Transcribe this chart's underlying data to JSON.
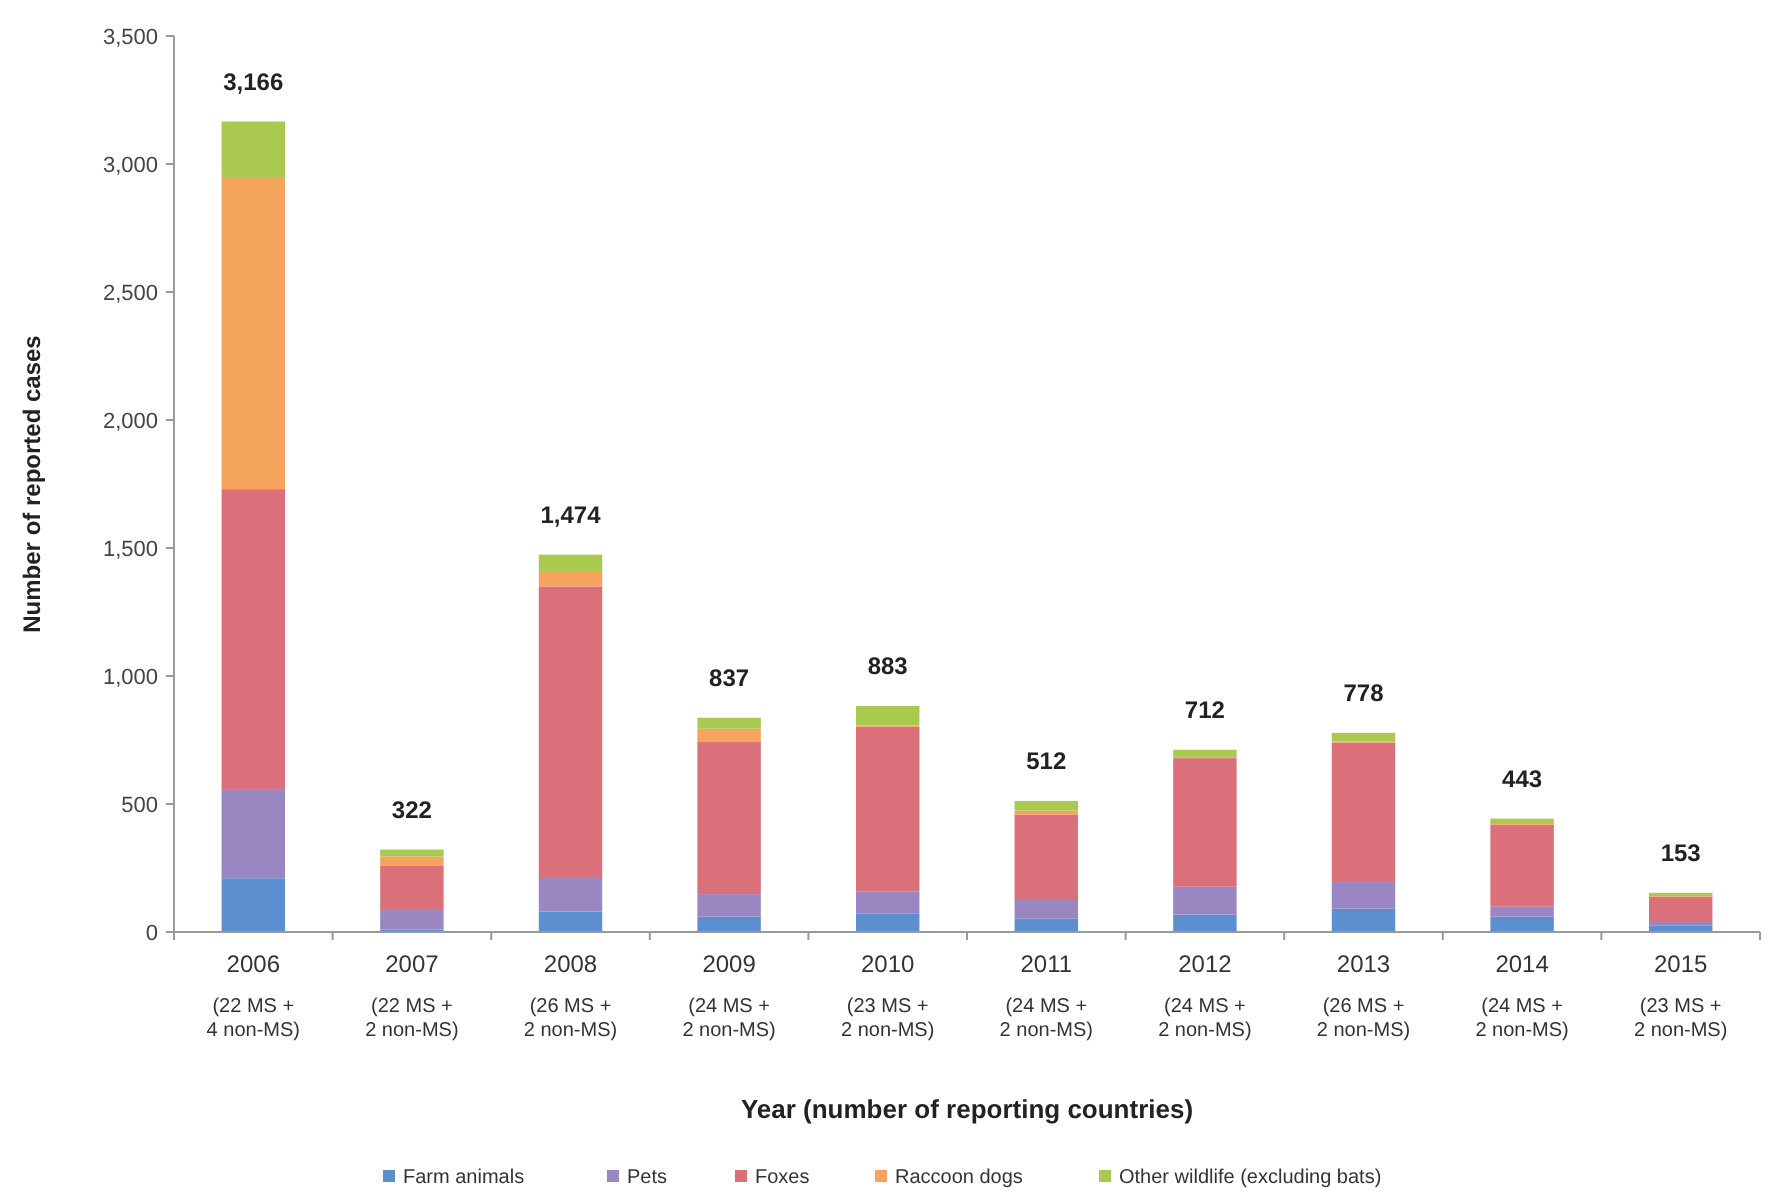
{
  "chart_data": {
    "type": "bar",
    "stacked": true,
    "xlabel": "Year (number of reporting countries)",
    "ylabel": "Number of reported cases",
    "categories": [
      "2006\n(22 MS +\n4 non-MS)",
      "2007\n(22 MS +\n2 non-MS)",
      "2008\n(26 MS +\n2 non-MS)",
      "2009\n(24 MS +\n2 non-MS)",
      "2010\n(23 MS +\n2 non-MS)",
      "2011\n(24 MS +\n2 non-MS)",
      "2012\n(24 MS +\n2 non-MS)",
      "2013\n(26 MS +\n2 non-MS)",
      "2014\n(24 MS +\n2 non-MS)",
      "2015\n(23 MS +\n2 non-MS)"
    ],
    "series": [
      {
        "name": "Farm animals",
        "color": "#5b8fcf",
        "values": [
          210,
          10,
          80,
          60,
          73,
          52,
          68,
          91,
          60,
          26
        ]
      },
      {
        "name": "Pets",
        "color": "#9a86c0",
        "values": [
          345,
          80,
          135,
          88,
          86,
          73,
          109,
          104,
          39,
          13
        ]
      },
      {
        "name": "Foxes",
        "color": "#d9707a",
        "values": [
          1175,
          170,
          1135,
          594,
          643,
          333,
          502,
          545,
          320,
          99
        ]
      },
      {
        "name": "Raccoon dogs",
        "color": "#f5a45d",
        "values": [
          1215,
          35,
          60,
          52,
          5,
          16,
          5,
          5,
          3,
          2
        ]
      },
      {
        "name": "Other wildlife (excluding bats)",
        "color": "#a9c94f",
        "values": [
          221,
          27,
          64,
          43,
          76,
          38,
          28,
          33,
          21,
          13
        ]
      }
    ],
    "totals": [
      "3,166",
      "322",
      "1,474",
      "837",
      "883",
      "512",
      "712",
      "778",
      "443",
      "153"
    ],
    "ylim": [
      0,
      3500
    ],
    "yticks": [
      0,
      500,
      {
        "value": 1000,
        "label": "1,000"
      },
      {
        "value": 1500,
        "label": "1,500"
      },
      {
        "value": 2000,
        "label": "2,000"
      },
      {
        "value": 2500,
        "label": "2,500"
      },
      {
        "value": 3000,
        "label": "3,000"
      },
      {
        "value": 3500,
        "label": "3,500"
      }
    ],
    "grid": false,
    "legend": "bottom"
  }
}
